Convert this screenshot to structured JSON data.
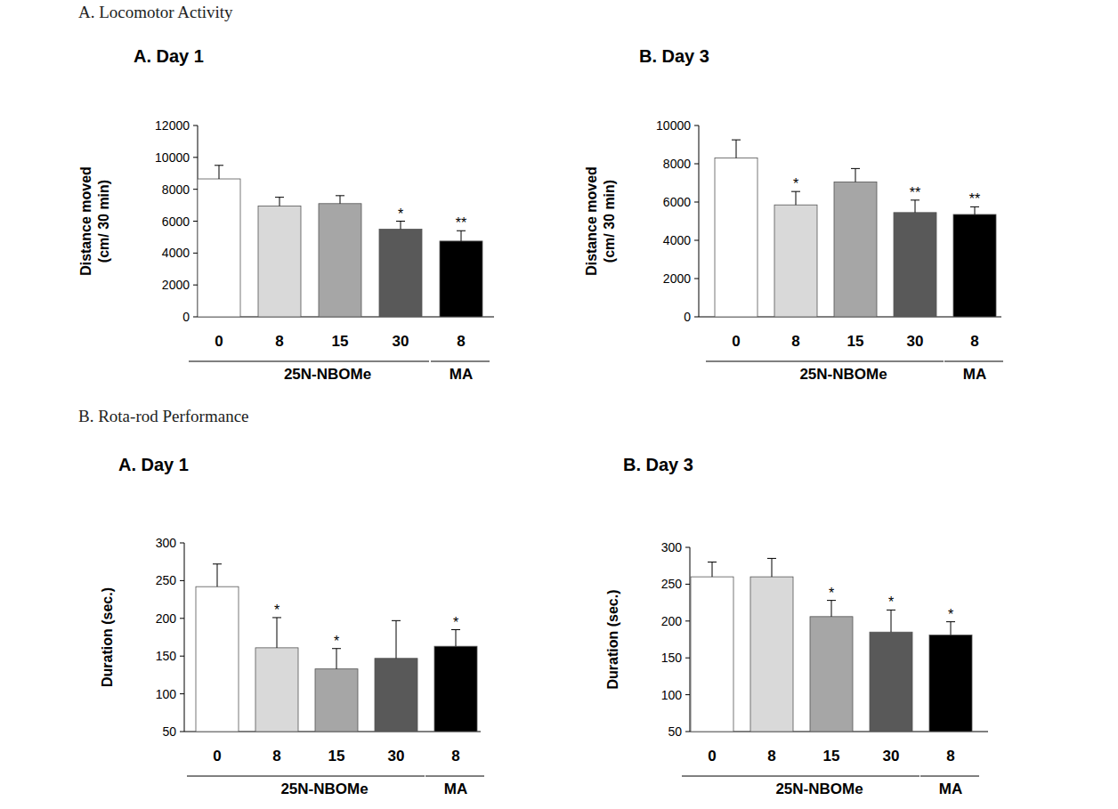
{
  "headings": [
    "A. Locomotor Activity",
    "B. Rota-rod Performance"
  ],
  "chart_data": [
    {
      "type": "bar",
      "title": "A. Day 1",
      "ylabel": [
        "Distance moved",
        "(cm/ 30 min)"
      ],
      "categories": [
        "0",
        "8",
        "15",
        "30",
        "8"
      ],
      "values": [
        8650,
        6950,
        7100,
        5500,
        4750
      ],
      "errors": [
        850,
        550,
        500,
        500,
        650
      ],
      "significance": [
        null,
        null,
        null,
        "*",
        "**"
      ],
      "colors": [
        "#ffffff",
        "#d9d9d9",
        "#a6a6a6",
        "#595959",
        "#000000"
      ],
      "groups": [
        {
          "label": "25N-NBOMe",
          "first": 0,
          "last": 3
        },
        {
          "label": "MA",
          "first": 4,
          "last": 4
        }
      ],
      "ylim": [
        0,
        12000
      ],
      "yticks": [
        0,
        2000,
        4000,
        6000,
        8000,
        10000,
        12000
      ]
    },
    {
      "type": "bar",
      "title": "B. Day 3",
      "ylabel": [
        "Distance moved",
        "(cm/ 30 min)"
      ],
      "categories": [
        "0",
        "8",
        "15",
        "30",
        "8"
      ],
      "values": [
        8300,
        5850,
        7050,
        5450,
        5350
      ],
      "errors": [
        950,
        700,
        700,
        650,
        400
      ],
      "significance": [
        null,
        "*",
        null,
        "**",
        "**"
      ],
      "colors": [
        "#ffffff",
        "#d9d9d9",
        "#a6a6a6",
        "#595959",
        "#000000"
      ],
      "groups": [
        {
          "label": "25N-NBOMe",
          "first": 0,
          "last": 3
        },
        {
          "label": "MA",
          "first": 4,
          "last": 4
        }
      ],
      "ylim": [
        0,
        10000
      ],
      "yticks": [
        0,
        2000,
        4000,
        6000,
        8000,
        10000
      ]
    },
    {
      "type": "bar",
      "title": "A. Day 1",
      "ylabel": [
        "Duration (sec.)"
      ],
      "categories": [
        "0",
        "8",
        "15",
        "30",
        "8"
      ],
      "values": [
        242,
        161,
        133,
        147,
        163
      ],
      "errors": [
        30,
        40,
        27,
        50,
        22
      ],
      "significance": [
        null,
        "*",
        "*",
        null,
        "*"
      ],
      "colors": [
        "#ffffff",
        "#d9d9d9",
        "#a6a6a6",
        "#595959",
        "#000000"
      ],
      "groups": [
        {
          "label": "25N-NBOMe",
          "first": 0,
          "last": 3
        },
        {
          "label": "MA",
          "first": 4,
          "last": 4
        }
      ],
      "ylim": [
        50,
        300
      ],
      "yticks": [
        50,
        100,
        150,
        200,
        250,
        300
      ]
    },
    {
      "type": "bar",
      "title": "B. Day 3",
      "ylabel": [
        "Duration (sec.)"
      ],
      "categories": [
        "0",
        "8",
        "15",
        "30",
        "8"
      ],
      "values": [
        260,
        260,
        206,
        185,
        181
      ],
      "errors": [
        20,
        25,
        22,
        30,
        18
      ],
      "significance": [
        null,
        null,
        "*",
        "*",
        "*"
      ],
      "colors": [
        "#ffffff",
        "#d9d9d9",
        "#a6a6a6",
        "#595959",
        "#000000"
      ],
      "groups": [
        {
          "label": "25N-NBOMe",
          "first": 0,
          "last": 3
        },
        {
          "label": "MA",
          "first": 4,
          "last": 4
        }
      ],
      "ylim": [
        50,
        300
      ],
      "yticks": [
        50,
        100,
        150,
        200,
        250,
        300
      ]
    }
  ]
}
